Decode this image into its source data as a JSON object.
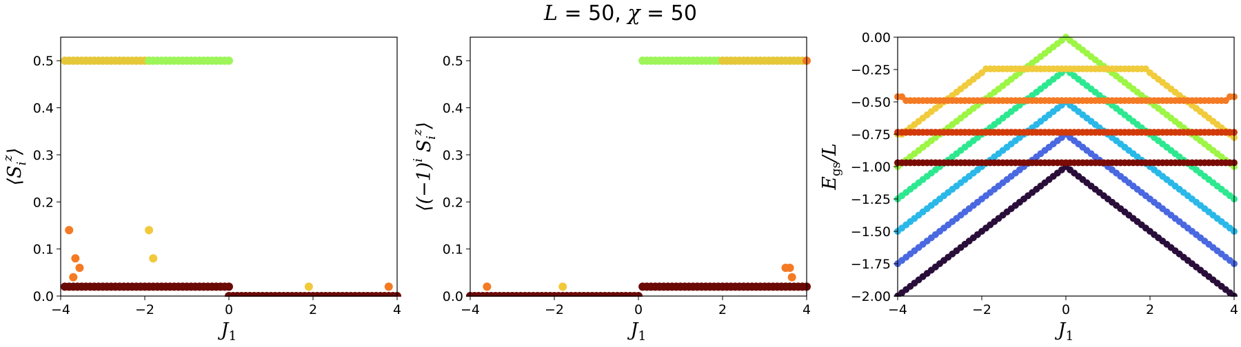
{
  "figure_title": "L = 50, χ = 50",
  "chart_data": [
    {
      "type": "scatter",
      "xlabel": "J1",
      "ylabel": "⟨S_i^z⟩",
      "xlim": [
        -4,
        4
      ],
      "ylim": [
        0,
        0.55
      ],
      "xticks": [
        "−4",
        "−2",
        "0",
        "2",
        "4"
      ],
      "yticks": [
        "0.0",
        "0.1",
        "0.2",
        "0.3",
        "0.4",
        "0.5"
      ],
      "grid": false,
      "segments": [
        {
          "x_start": -3.9,
          "x_end": -1.9,
          "step": 0.1,
          "y": 0.5,
          "color": "#e5c83a"
        },
        {
          "x_start": -1.9,
          "x_end": 0.0,
          "step": 0.1,
          "y": 0.5,
          "color": "#9df55a"
        },
        {
          "x_start": -3.9,
          "x_end": 0.0,
          "step": 0.1,
          "y": 0.02,
          "color": "#6b0a05"
        },
        {
          "x_start": 0.0,
          "x_end": 4.0,
          "step": 0.1,
          "y": 0.0,
          "color": "#6b0a05"
        }
      ],
      "points": [
        {
          "x": -3.8,
          "y": 0.14,
          "color": "#f47a24"
        },
        {
          "x": -3.65,
          "y": 0.08,
          "color": "#f47a24"
        },
        {
          "x": -3.7,
          "y": 0.04,
          "color": "#f47a24"
        },
        {
          "x": -3.55,
          "y": 0.06,
          "color": "#f47a24"
        },
        {
          "x": -1.9,
          "y": 0.14,
          "color": "#f1c93a"
        },
        {
          "x": -1.8,
          "y": 0.08,
          "color": "#f1c93a"
        },
        {
          "x": 1.9,
          "y": 0.02,
          "color": "#f1c93a"
        },
        {
          "x": 3.8,
          "y": 0.02,
          "color": "#f47a24"
        }
      ]
    },
    {
      "type": "scatter",
      "xlabel": "J1",
      "ylabel": "⟨(−1)^i S_i^z⟩",
      "xlim": [
        -4,
        4
      ],
      "ylim": [
        0,
        0.55
      ],
      "xticks": [
        "−4",
        "−2",
        "0",
        "2",
        "4"
      ],
      "yticks": [
        "0.0",
        "0.1",
        "0.2",
        "0.3",
        "0.4",
        "0.5"
      ],
      "grid": false,
      "segments": [
        {
          "x_start": -4.0,
          "x_end": 0.0,
          "step": 0.1,
          "y": 0.0,
          "color": "#6b0a05"
        },
        {
          "x_start": 0.1,
          "x_end": 4.0,
          "step": 0.1,
          "y": 0.02,
          "color": "#6b0a05"
        },
        {
          "x_start": 0.1,
          "x_end": 1.9,
          "step": 0.1,
          "y": 0.5,
          "color": "#9df55a"
        },
        {
          "x_start": 2.0,
          "x_end": 3.9,
          "step": 0.1,
          "y": 0.5,
          "color": "#e5c83a"
        }
      ],
      "points": [
        {
          "x": 4.0,
          "y": 0.5,
          "color": "#f47a24"
        },
        {
          "x": -3.6,
          "y": 0.02,
          "color": "#f47a24"
        },
        {
          "x": -1.8,
          "y": 0.02,
          "color": "#f1c93a"
        },
        {
          "x": 3.5,
          "y": 0.06,
          "color": "#f47a24"
        },
        {
          "x": 3.6,
          "y": 0.06,
          "color": "#f47a24"
        },
        {
          "x": 3.65,
          "y": 0.04,
          "color": "#f47a24"
        }
      ]
    },
    {
      "type": "line",
      "xlabel": "J1",
      "ylabel": "E_gs/L",
      "xlim": [
        -4,
        4
      ],
      "ylim": [
        -2.0,
        0.0
      ],
      "xticks": [
        "−4",
        "−2",
        "0",
        "2",
        "4"
      ],
      "yticks": [
        "0.00",
        "−0.25",
        "−0.50",
        "−0.75",
        "−1.00",
        "−1.25",
        "−1.50",
        "−1.75",
        "−2.00"
      ],
      "grid": false,
      "marker": "circle",
      "x_step": 0.1,
      "series": [
        {
          "shape": "v",
          "peak": 0.0,
          "slope": 0.25,
          "color": "#9df545"
        },
        {
          "shape": "v",
          "peak": -0.25,
          "slope": 0.25,
          "color": "#2ee890"
        },
        {
          "shape": "v",
          "peak": -0.5,
          "slope": 0.25,
          "color": "#2ab8e8"
        },
        {
          "shape": "v",
          "peak": -0.75,
          "slope": 0.25,
          "color": "#4a68e0"
        },
        {
          "shape": "v",
          "peak": -1.0,
          "slope": 0.25,
          "color": "#2a0e3a"
        },
        {
          "shape": "plateau",
          "left_peak": -0.25,
          "right_peak": -0.25,
          "plateau": -0.245,
          "slope": 0.25,
          "color": "#f0cb3c",
          "x_range": [
            -4,
            4
          ]
        },
        {
          "shape": "flat",
          "level": -0.49,
          "color": "#f47a24",
          "wiggle": true
        },
        {
          "shape": "flat",
          "level": -0.735,
          "color": "#d23a0a"
        },
        {
          "shape": "flat",
          "level": -0.97,
          "color": "#7a0c05"
        }
      ]
    }
  ]
}
